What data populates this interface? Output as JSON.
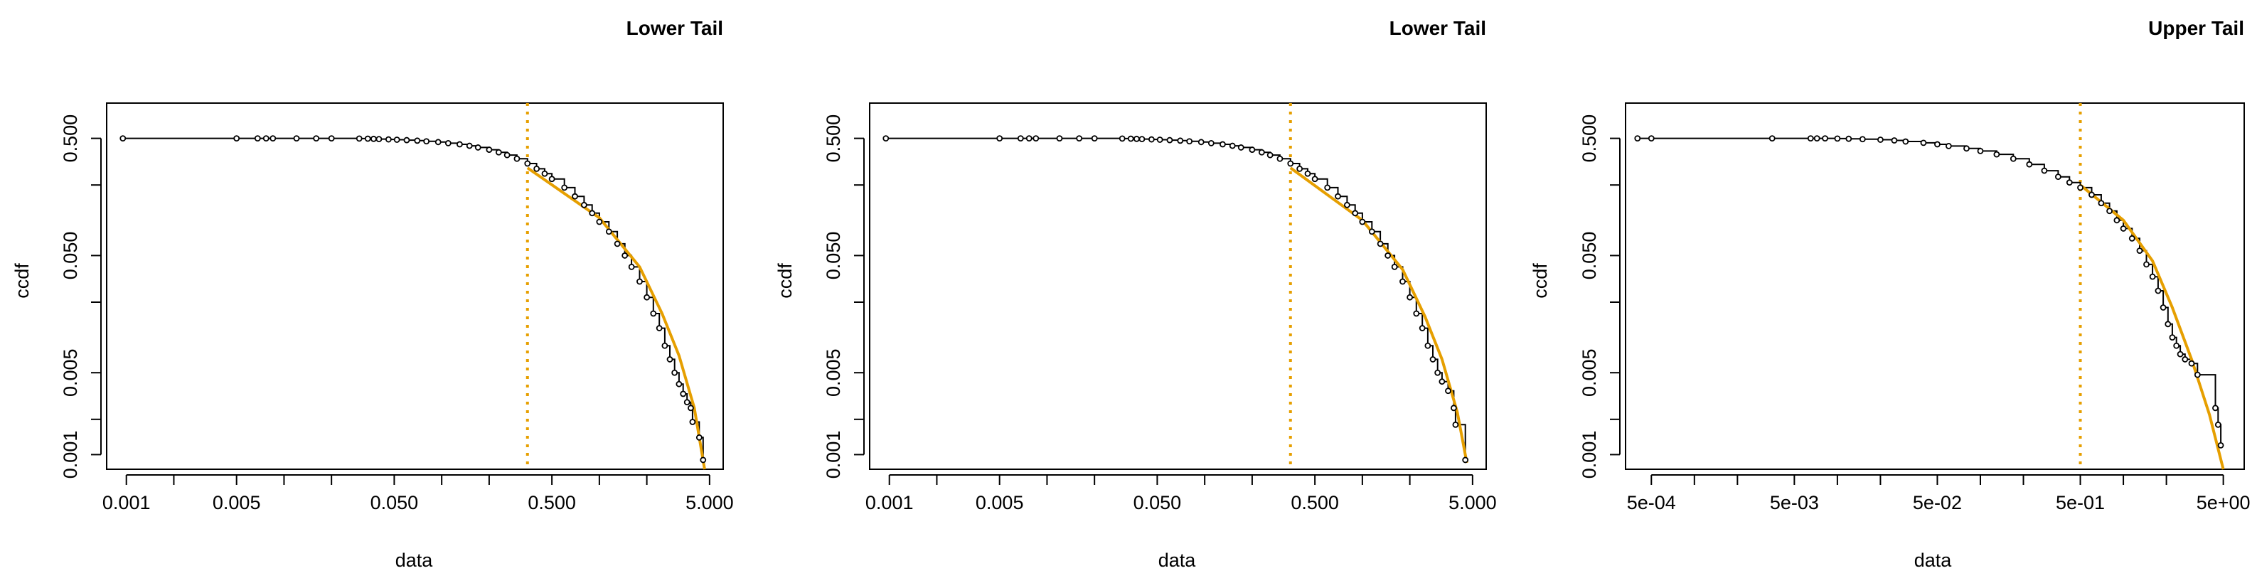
{
  "chart_data": [
    {
      "type": "scatter",
      "title": "Lower Tail",
      "xlabel": "data",
      "ylabel": "ccdf",
      "log_x": true,
      "log_y": true,
      "xlim": [
        0.00075,
        6.1
      ],
      "ylim": [
        0.00075,
        1.0
      ],
      "grid": false,
      "legend": "none",
      "x_ticks": [
        0.001,
        0.005,
        0.05,
        0.5,
        5
      ],
      "x_tick_labels": [
        "0.001",
        "0.005",
        "0.050",
        "0.500",
        "5.000"
      ],
      "x_minor_ticks": [
        0.002,
        0.01,
        0.02,
        0.1,
        0.2,
        1,
        2
      ],
      "y_ticks": [
        0.001,
        0.005,
        0.05,
        0.5
      ],
      "y_tick_labels": [
        "0.001",
        "0.005",
        "0.050",
        "0.500"
      ],
      "y_minor_ticks": [
        0.002,
        0.02,
        0.2
      ],
      "threshold_x": 0.35,
      "fit_curve": {
        "x": [
          0.35,
          1,
          1.8,
          2.5,
          3.2,
          4.0,
          4.65
        ],
        "y": [
          0.28,
          0.105,
          0.04,
          0.016,
          0.007,
          0.0025,
          0.00075
        ]
      },
      "colors": {
        "points": "#000000",
        "fit": "#E69F00",
        "threshold": "#E69F00"
      },
      "series": [
        {
          "values": [
            [
              0.00095,
              0.5
            ],
            [
              0.005,
              0.5
            ],
            [
              0.0068,
              0.5
            ],
            [
              0.0077,
              0.5
            ],
            [
              0.0085,
              0.5
            ],
            [
              0.012,
              0.5
            ],
            [
              0.016,
              0.5
            ],
            [
              0.02,
              0.5
            ],
            [
              0.03,
              0.498
            ],
            [
              0.034,
              0.497
            ],
            [
              0.037,
              0.495
            ],
            [
              0.04,
              0.493
            ],
            [
              0.046,
              0.49
            ],
            [
              0.052,
              0.487
            ],
            [
              0.06,
              0.483
            ],
            [
              0.07,
              0.478
            ],
            [
              0.08,
              0.472
            ],
            [
              0.095,
              0.465
            ],
            [
              0.11,
              0.455
            ],
            [
              0.13,
              0.445
            ],
            [
              0.15,
              0.432
            ],
            [
              0.17,
              0.418
            ],
            [
              0.2,
              0.4
            ],
            [
              0.23,
              0.38
            ],
            [
              0.26,
              0.36
            ],
            [
              0.3,
              0.335
            ],
            [
              0.35,
              0.305
            ],
            [
              0.4,
              0.275
            ],
            [
              0.45,
              0.25
            ],
            [
              0.5,
              0.225
            ],
            [
              0.6,
              0.19
            ],
            [
              0.7,
              0.16
            ],
            [
              0.8,
              0.135
            ],
            [
              0.9,
              0.115
            ],
            [
              1.0,
              0.097
            ],
            [
              1.15,
              0.08
            ],
            [
              1.3,
              0.063
            ],
            [
              1.45,
              0.05
            ],
            [
              1.6,
              0.04
            ],
            [
              1.8,
              0.03
            ],
            [
              2.0,
              0.022
            ],
            [
              2.2,
              0.016
            ],
            [
              2.4,
              0.012
            ],
            [
              2.6,
              0.0085
            ],
            [
              2.8,
              0.0065
            ],
            [
              3.0,
              0.005
            ],
            [
              3.2,
              0.004
            ],
            [
              3.4,
              0.0033
            ],
            [
              3.6,
              0.0028
            ],
            [
              3.8,
              0.0025
            ],
            [
              3.9,
              0.0019
            ],
            [
              4.3,
              0.0014
            ],
            [
              4.55,
              0.0009
            ]
          ]
        }
      ]
    },
    {
      "type": "scatter",
      "title": "Lower Tail",
      "xlabel": "data",
      "ylabel": "ccdf",
      "log_x": true,
      "log_y": true,
      "xlim": [
        0.00075,
        6.1
      ],
      "ylim": [
        0.00075,
        1.0
      ],
      "grid": false,
      "legend": "none",
      "x_ticks": [
        0.001,
        0.005,
        0.05,
        0.5,
        5
      ],
      "x_tick_labels": [
        "0.001",
        "0.005",
        "0.050",
        "0.500",
        "5.000"
      ],
      "x_minor_ticks": [
        0.002,
        0.01,
        0.02,
        0.1,
        0.2,
        1,
        2
      ],
      "y_ticks": [
        0.001,
        0.005,
        0.05,
        0.5
      ],
      "y_tick_labels": [
        "0.001",
        "0.005",
        "0.050",
        "0.500"
      ],
      "y_minor_ticks": [
        0.002,
        0.02,
        0.2
      ],
      "threshold_x": 0.35,
      "fit_curve": {
        "x": [
          0.35,
          1,
          1.8,
          2.5,
          3.2,
          4.0,
          4.6
        ],
        "y": [
          0.28,
          0.1,
          0.038,
          0.015,
          0.0065,
          0.0023,
          0.00085
        ]
      },
      "colors": {
        "points": "#000000",
        "fit": "#E69F00",
        "threshold": "#E69F00"
      },
      "series": [
        {
          "values": [
            [
              0.00095,
              0.5
            ],
            [
              0.005,
              0.5
            ],
            [
              0.0068,
              0.5
            ],
            [
              0.0077,
              0.5
            ],
            [
              0.0085,
              0.5
            ],
            [
              0.012,
              0.5
            ],
            [
              0.016,
              0.5
            ],
            [
              0.02,
              0.5
            ],
            [
              0.03,
              0.498
            ],
            [
              0.034,
              0.497
            ],
            [
              0.037,
              0.495
            ],
            [
              0.04,
              0.493
            ],
            [
              0.046,
              0.49
            ],
            [
              0.052,
              0.487
            ],
            [
              0.06,
              0.483
            ],
            [
              0.07,
              0.478
            ],
            [
              0.08,
              0.472
            ],
            [
              0.095,
              0.465
            ],
            [
              0.11,
              0.455
            ],
            [
              0.13,
              0.445
            ],
            [
              0.15,
              0.432
            ],
            [
              0.17,
              0.418
            ],
            [
              0.2,
              0.4
            ],
            [
              0.23,
              0.38
            ],
            [
              0.26,
              0.36
            ],
            [
              0.3,
              0.335
            ],
            [
              0.35,
              0.305
            ],
            [
              0.4,
              0.275
            ],
            [
              0.45,
              0.25
            ],
            [
              0.5,
              0.225
            ],
            [
              0.6,
              0.19
            ],
            [
              0.7,
              0.16
            ],
            [
              0.8,
              0.135
            ],
            [
              0.9,
              0.115
            ],
            [
              1.0,
              0.097
            ],
            [
              1.15,
              0.08
            ],
            [
              1.3,
              0.063
            ],
            [
              1.45,
              0.05
            ],
            [
              1.6,
              0.04
            ],
            [
              1.8,
              0.03
            ],
            [
              2.0,
              0.022
            ],
            [
              2.2,
              0.016
            ],
            [
              2.4,
              0.012
            ],
            [
              2.6,
              0.0085
            ],
            [
              2.8,
              0.0065
            ],
            [
              3.0,
              0.005
            ],
            [
              3.2,
              0.0042
            ],
            [
              3.5,
              0.0035
            ],
            [
              3.8,
              0.0025
            ],
            [
              3.9,
              0.0018
            ],
            [
              4.5,
              0.0009
            ]
          ]
        }
      ]
    },
    {
      "type": "scatter",
      "title": "Upper Tail",
      "xlabel": "data",
      "ylabel": "ccdf",
      "log_x": true,
      "log_y": true,
      "xlim": [
        0.00033,
        7.0
      ],
      "ylim": [
        0.00075,
        1.0
      ],
      "grid": false,
      "legend": "none",
      "x_ticks": [
        0.0005,
        0.005,
        0.05,
        0.5,
        5
      ],
      "x_tick_labels": [
        "5e-04",
        "5e-03",
        "5e-02",
        "5e-01",
        "5e+00"
      ],
      "x_minor_ticks": [
        0.001,
        0.002,
        0.01,
        0.02,
        0.1,
        0.2,
        1,
        2
      ],
      "y_ticks": [
        0.001,
        0.005,
        0.05,
        0.5
      ],
      "y_tick_labels": [
        "0.001",
        "0.005",
        "0.050",
        "0.500"
      ],
      "y_minor_ticks": [
        0.002,
        0.02,
        0.2
      ],
      "threshold_x": 0.5,
      "fit_curve": {
        "x": [
          0.5,
          1.0,
          1.6,
          2.2,
          3.0,
          4.0,
          5.0
        ],
        "y": [
          0.2,
          0.1,
          0.045,
          0.018,
          0.0065,
          0.0022,
          0.00075
        ]
      },
      "colors": {
        "points": "#000000",
        "fit": "#E69F00",
        "threshold": "#E69F00"
      },
      "series": [
        {
          "values": [
            [
              0.0004,
              0.5
            ],
            [
              0.0005,
              0.5
            ],
            [
              0.0035,
              0.5
            ],
            [
              0.0065,
              0.5
            ],
            [
              0.0072,
              0.5
            ],
            [
              0.0082,
              0.5
            ],
            [
              0.01,
              0.498
            ],
            [
              0.012,
              0.496
            ],
            [
              0.015,
              0.492
            ],
            [
              0.02,
              0.487
            ],
            [
              0.025,
              0.48
            ],
            [
              0.03,
              0.47
            ],
            [
              0.04,
              0.458
            ],
            [
              0.05,
              0.445
            ],
            [
              0.06,
              0.43
            ],
            [
              0.08,
              0.41
            ],
            [
              0.1,
              0.39
            ],
            [
              0.13,
              0.365
            ],
            [
              0.17,
              0.335
            ],
            [
              0.22,
              0.3
            ],
            [
              0.28,
              0.265
            ],
            [
              0.35,
              0.235
            ],
            [
              0.42,
              0.21
            ],
            [
              0.5,
              0.19
            ],
            [
              0.6,
              0.165
            ],
            [
              0.7,
              0.14
            ],
            [
              0.8,
              0.12
            ],
            [
              0.9,
              0.1
            ],
            [
              1.0,
              0.085
            ],
            [
              1.15,
              0.07
            ],
            [
              1.3,
              0.055
            ],
            [
              1.45,
              0.042
            ],
            [
              1.6,
              0.033
            ],
            [
              1.75,
              0.025
            ],
            [
              1.9,
              0.018
            ],
            [
              2.05,
              0.013
            ],
            [
              2.2,
              0.01
            ],
            [
              2.35,
              0.0085
            ],
            [
              2.5,
              0.0072
            ],
            [
              2.7,
              0.0065
            ],
            [
              3.0,
              0.006
            ],
            [
              3.3,
              0.0048
            ],
            [
              4.4,
              0.0025
            ],
            [
              4.6,
              0.0018
            ],
            [
              4.8,
              0.0012
            ]
          ]
        }
      ]
    }
  ]
}
